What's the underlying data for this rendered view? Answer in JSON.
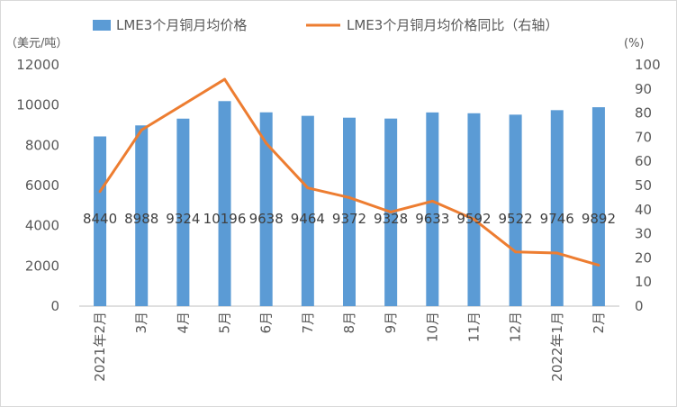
{
  "chart_data": {
    "type": "bar",
    "categories": [
      "2021年2月",
      "3月",
      "4月",
      "5月",
      "6月",
      "7月",
      "8月",
      "9月",
      "10月",
      "11月",
      "12月",
      "2022年1月",
      "2月"
    ],
    "series": [
      {
        "name": "LME3个月铜月均价格",
        "type": "bar",
        "axis": "left",
        "color": "#5b9bd5",
        "values": [
          8440,
          8988,
          9324,
          10196,
          9638,
          9464,
          9372,
          9328,
          9633,
          9592,
          9522,
          9746,
          9892
        ],
        "labels": [
          "8440",
          "8988",
          "9324",
          "10196",
          "9638",
          "9464",
          "9372",
          "9328",
          "9633",
          "9592",
          "9522",
          "9746",
          "9892"
        ]
      },
      {
        "name": "LME3个月铜月均价格同比（右轴）",
        "type": "line",
        "axis": "right",
        "color": "#ed7d31",
        "values": [
          47.5,
          73,
          83.5,
          94,
          67.5,
          49,
          45,
          39,
          43.5,
          36,
          22.5,
          22,
          17
        ]
      }
    ],
    "left_axis": {
      "unit": "（美元/吨）",
      "range": [
        0,
        12000
      ],
      "ticks": [
        "0",
        "2000",
        "4000",
        "6000",
        "8000",
        "10000",
        "12000"
      ]
    },
    "right_axis": {
      "unit": "(%)",
      "range": [
        0,
        100
      ],
      "ticks": [
        "0",
        "10",
        "20",
        "30",
        "40",
        "50",
        "60",
        "70",
        "80",
        "90",
        "100"
      ]
    },
    "grid": false,
    "legend_position": "top"
  }
}
